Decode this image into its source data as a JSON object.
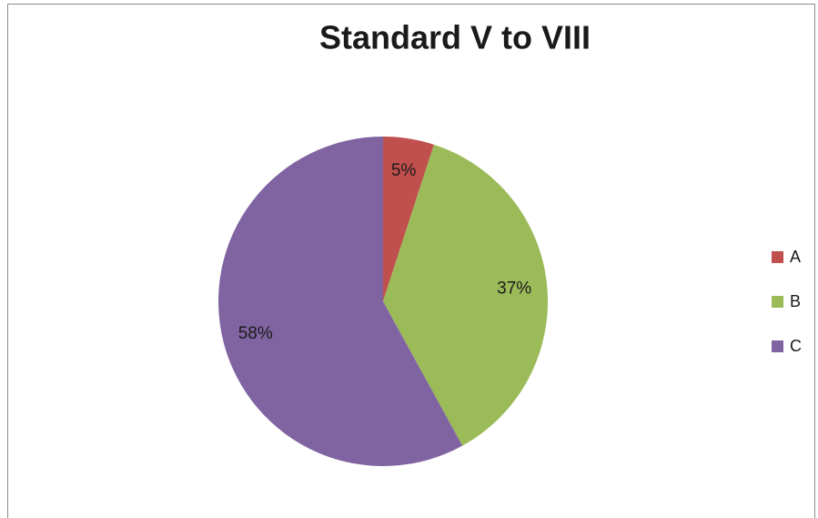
{
  "chart_data": {
    "type": "pie",
    "title": "Standard V to VIII",
    "categories": [
      "A",
      "B",
      "C"
    ],
    "values": [
      5,
      37,
      58
    ],
    "value_labels": [
      "5%",
      "37%",
      "58%"
    ],
    "colors": [
      "#c0504d",
      "#9bbb59",
      "#8064a2"
    ],
    "legend": "right"
  }
}
